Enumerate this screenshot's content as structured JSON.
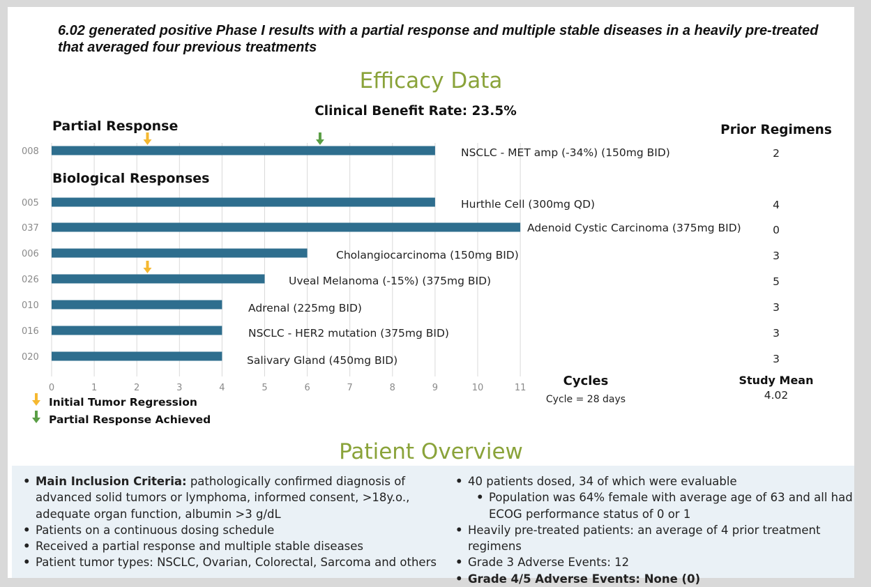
{
  "headline": [
    "6.02 generated positive Phase I results with a partial response and multiple stable diseases in a heavily pre-treated",
    "that averaged four previous treatments"
  ],
  "efficacy_title": "Efficacy Data",
  "overview_title": "Patient Overview",
  "colors": {
    "bar": "#2e6e8e",
    "title_green": "#8aa33a",
    "arrow_orange": "#f5b830",
    "arrow_green": "#5a9e45",
    "grid": "#d9d9d9"
  },
  "chart_data": {
    "type": "bar",
    "orientation": "horizontal",
    "title": "Clinical Benefit Rate: 23.5%",
    "xlabel": "Cycles",
    "xlabel_note": "Cycle = 28 days",
    "xlim": [
      0,
      11
    ],
    "xticks": [
      0,
      1,
      2,
      3,
      4,
      5,
      6,
      7,
      8,
      9,
      10,
      11
    ],
    "grid": true,
    "groups": [
      {
        "label": "Partial Response",
        "rows": [
          "008"
        ]
      },
      {
        "label": "Biological Responses",
        "rows": [
          "005",
          "037",
          "006",
          "026",
          "010",
          "016",
          "020"
        ]
      }
    ],
    "right_header": "Prior Regimens",
    "rows": [
      {
        "id": "008",
        "cycles": 9,
        "label": "NSCLC - MET amp (-34%) (150mg BID)",
        "prior_regimens": "2"
      },
      {
        "id": "005",
        "cycles": 9,
        "label": "Hurthle Cell (300mg QD)",
        "prior_regimens": "4"
      },
      {
        "id": "037",
        "cycles": 11,
        "label": "Adenoid Cystic Carcinoma (375mg BID)",
        "prior_regimens": "0"
      },
      {
        "id": "006",
        "cycles": 6,
        "label": "Cholangiocarcinoma (150mg BID)",
        "prior_regimens": "3"
      },
      {
        "id": "026",
        "cycles": 5,
        "label": "Uveal Melanoma (-15%) (375mg BID)",
        "prior_regimens": "5"
      },
      {
        "id": "010",
        "cycles": 4,
        "label": "Adrenal (225mg BID)",
        "prior_regimens": "3"
      },
      {
        "id": "016",
        "cycles": 4,
        "label": "NSCLC - HER2 mutation (375mg BID)",
        "prior_regimens": "3"
      },
      {
        "id": "020",
        "cycles": 4,
        "label": "Salivary Gland (450mg BID)",
        "prior_regimens": "3"
      }
    ],
    "markers": [
      {
        "row": "008",
        "cycle": 2.25,
        "kind": "initial"
      },
      {
        "row": "008",
        "cycle": 6.3,
        "kind": "partial"
      },
      {
        "row": "026",
        "cycle": 2.25,
        "kind": "initial"
      }
    ],
    "legend": [
      {
        "kind": "initial",
        "label": "Initial Tumor Regression"
      },
      {
        "kind": "partial",
        "label": "Partial Response Achieved"
      }
    ],
    "study_mean_label": "Study Mean",
    "study_mean_value": "4.02"
  },
  "overview": {
    "left": [
      {
        "bold": "Main Inclusion Criteria:",
        "text": " pathologically confirmed diagnosis of advanced solid tumors or lymphoma, informed consent, >18y.o., adequate organ function, albumin >3 g/dL"
      },
      {
        "bold": "",
        "text": "Patients on a continuous dosing schedule"
      },
      {
        "bold": "",
        "text": "Received a partial response and multiple stable diseases"
      },
      {
        "bold": "",
        "text": "Patient tumor types: NSCLC, Ovarian, Colorectal, Sarcoma and others"
      }
    ],
    "right": [
      {
        "bold": "",
        "text": "40 patients dosed, 34 of which were evaluable",
        "sub": false
      },
      {
        "bold": "",
        "text": "Population was 64% female with average age of 63 and all had ECOG performance status of 0 or 1",
        "sub": true
      },
      {
        "bold": "",
        "text": "Heavily pre-treated patients: an average of 4 prior treatment regimens",
        "sub": false
      },
      {
        "bold": "",
        "text": "Grade 3 Adverse Events: 12",
        "sub": false
      },
      {
        "bold": "Grade 4/5 Adverse Events: None (0)",
        "text": "",
        "sub": false
      }
    ]
  }
}
